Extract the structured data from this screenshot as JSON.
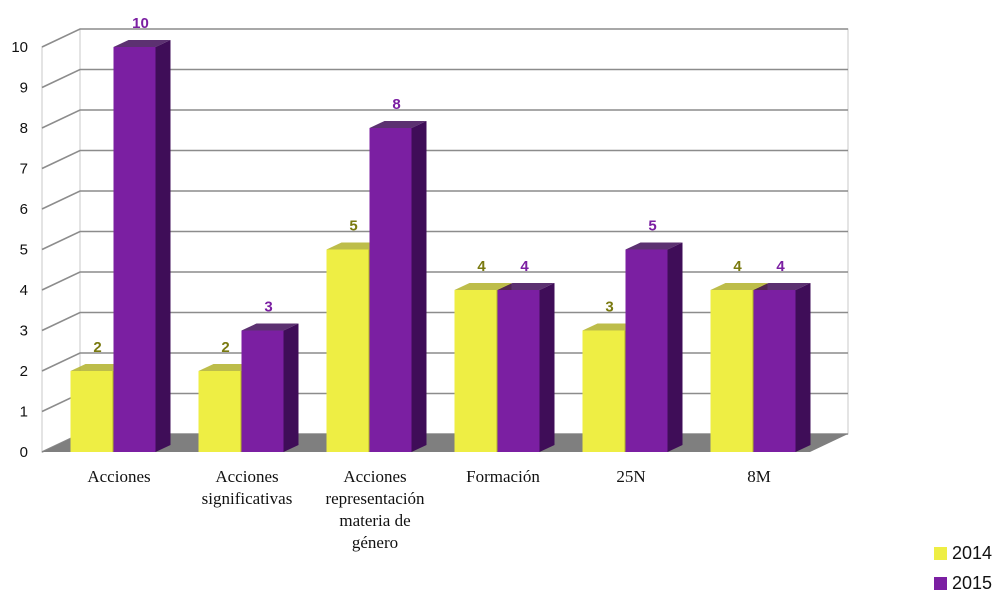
{
  "chart_data": {
    "type": "bar",
    "title": "",
    "xlabel": "",
    "ylabel": "",
    "ylim": [
      0,
      10
    ],
    "yticks": [
      "0",
      "1",
      "2",
      "3",
      "4",
      "5",
      "6",
      "7",
      "8",
      "9",
      "10"
    ],
    "grid": true,
    "legend_position": "bottom-right",
    "categories": [
      [
        "Acciones"
      ],
      [
        "Acciones",
        "significativas"
      ],
      [
        "Acciones",
        "representación",
        "materia de",
        "género"
      ],
      [
        "Formación"
      ],
      [
        "25N"
      ],
      [
        "8M"
      ]
    ],
    "series": [
      {
        "name": "2014",
        "values": [
          2,
          2,
          5,
          4,
          3,
          4
        ],
        "color": "#eeee44",
        "side_color": "#b2b22a",
        "label_color": "#7a7a10"
      },
      {
        "name": "2015",
        "values": [
          10,
          3,
          8,
          4,
          5,
          4
        ],
        "color": "#7b1fa2",
        "side_color": "#3f0d58",
        "label_color": "#7b1fa2"
      }
    ]
  }
}
